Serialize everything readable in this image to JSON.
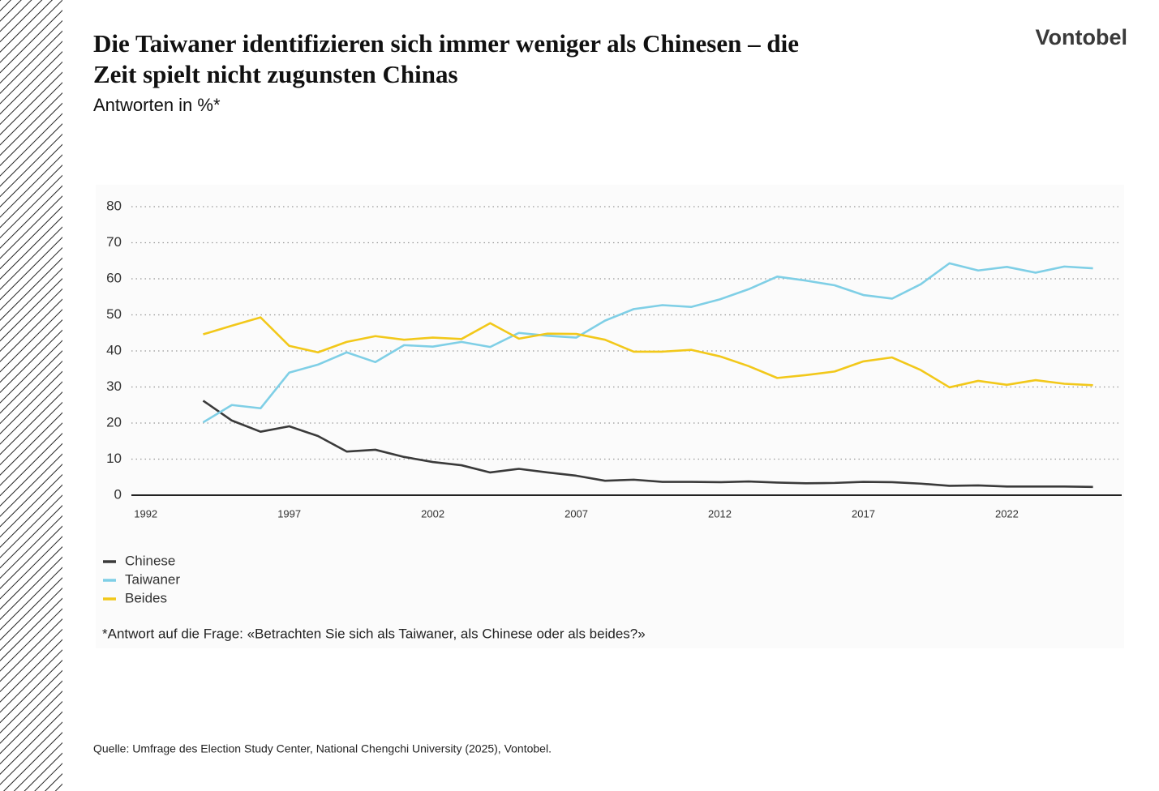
{
  "brand": "Vontobel",
  "chart_data": {
    "type": "line",
    "title_lines": [
      "Die Taiwaner identifizieren sich immer weniger als Chinesen – die",
      "Zeit spielt nicht zugunsten Chinas"
    ],
    "subtitle": "Antworten in %*",
    "x": [
      1994,
      1995,
      1996,
      1997,
      1998,
      1999,
      2000,
      2001,
      2002,
      2003,
      2004,
      2005,
      2006,
      2007,
      2008,
      2009,
      2010,
      2011,
      2012,
      2013,
      2014,
      2015,
      2016,
      2017,
      2018,
      2019,
      2020,
      2021,
      2022,
      2023,
      2024,
      2025
    ],
    "series": [
      {
        "name": "Chinese",
        "color": "#3a3a3a",
        "values": [
          26.2,
          20.7,
          17.6,
          19.1,
          16.4,
          12.1,
          12.6,
          10.6,
          9.2,
          8.3,
          6.3,
          7.3,
          6.3,
          5.4,
          4.0,
          4.3,
          3.7,
          3.7,
          3.6,
          3.8,
          3.5,
          3.3,
          3.4,
          3.7,
          3.6,
          3.2,
          2.6,
          2.7,
          2.4,
          2.4,
          2.4,
          2.3
        ]
      },
      {
        "name": "Taiwaner",
        "color": "#7fcfe6",
        "values": [
          20.2,
          25.0,
          24.1,
          34.0,
          36.2,
          39.6,
          36.9,
          41.6,
          41.2,
          42.5,
          41.1,
          45.0,
          44.2,
          43.7,
          48.4,
          51.6,
          52.7,
          52.2,
          54.3,
          57.1,
          60.6,
          59.5,
          58.2,
          55.5,
          54.5,
          58.5,
          64.3,
          62.3,
          63.3,
          61.7,
          63.4,
          62.9
        ]
      },
      {
        "name": "Beides",
        "color": "#f2c81a",
        "values": [
          44.6,
          47.0,
          49.3,
          41.4,
          39.6,
          42.5,
          44.1,
          43.1,
          43.7,
          43.3,
          47.7,
          43.4,
          44.8,
          44.7,
          43.1,
          39.8,
          39.8,
          40.3,
          38.5,
          35.8,
          32.5,
          33.3,
          34.3,
          37.1,
          38.2,
          34.7,
          29.9,
          31.7,
          30.6,
          31.9,
          30.9,
          30.5
        ]
      }
    ],
    "xlim": [
      1991.5,
      2026
    ],
    "xticks": [
      1992,
      1997,
      2002,
      2007,
      2012,
      2017,
      2022
    ],
    "ylim": [
      0,
      80
    ],
    "yticks": [
      0,
      10,
      20,
      30,
      40,
      50,
      60,
      70,
      80
    ],
    "grid": true,
    "legend": "bottom-left",
    "footnote": "*Antwort auf die Frage: «Betrachten Sie sich als Taiwaner, als Chinese oder als beides?»",
    "source": "Quelle: Umfrage des Election Study Center, National Chengchi University (2025), Vontobel."
  }
}
